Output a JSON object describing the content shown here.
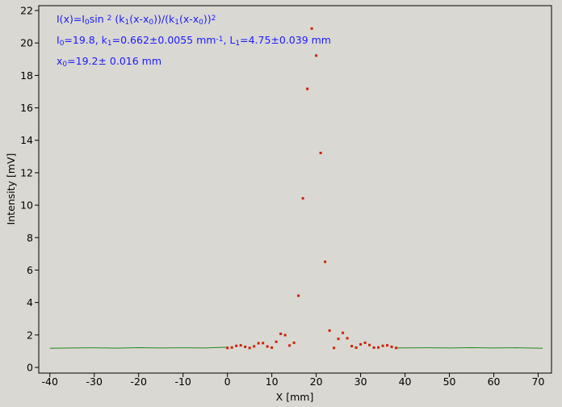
{
  "chart_data": {
    "type": "scatter",
    "xlabel": "X [mm]",
    "ylabel": "Intensity [mV]",
    "xlim": [
      -42.5,
      73
    ],
    "ylim": [
      -0.35,
      22.3
    ],
    "xticks": [
      -40,
      -30,
      -20,
      -10,
      0,
      10,
      20,
      30,
      40,
      50,
      60,
      70
    ],
    "yticks": [
      0,
      2,
      4,
      6,
      8,
      10,
      12,
      14,
      16,
      18,
      20,
      22
    ],
    "annotations": [
      [
        {
          "text": "I(x)=I"
        },
        {
          "text": "0",
          "shift": "sub"
        },
        {
          "text": "sin "
        },
        {
          "text": "2",
          "shift": "sup"
        },
        {
          "text": " (k"
        },
        {
          "text": "1",
          "shift": "sub"
        },
        {
          "text": "(x-x"
        },
        {
          "text": "0",
          "shift": "sub"
        },
        {
          "text": "))/(k"
        },
        {
          "text": "1",
          "shift": "sub"
        },
        {
          "text": "(x-x"
        },
        {
          "text": "0",
          "shift": "sub"
        },
        {
          "text": "))"
        },
        {
          "text": "2",
          "shift": "sup"
        }
      ],
      [
        {
          "text": "I"
        },
        {
          "text": "0",
          "shift": "sub"
        },
        {
          "text": "=19.8,  k"
        },
        {
          "text": "1",
          "shift": "sub"
        },
        {
          "text": "=0.662±0.0055 mm"
        },
        {
          "text": "-1",
          "shift": "sup"
        },
        {
          "text": ",   L"
        },
        {
          "text": "1",
          "shift": "sub"
        },
        {
          "text": "=4.75±0.039 mm"
        }
      ],
      [
        {
          "text": "x"
        },
        {
          "text": "0",
          "shift": "sub"
        },
        {
          "text": "=19.2±   0.016 mm"
        }
      ]
    ],
    "annotation_color": "#1a1aff",
    "series": [
      {
        "style": "line",
        "color": "#1f8a1f",
        "x": [
          -40,
          -35,
          -30,
          -25,
          -20,
          -15,
          -10,
          -5,
          0
        ],
        "values": [
          1.18,
          1.2,
          1.21,
          1.19,
          1.22,
          1.2,
          1.21,
          1.2,
          1.25
        ]
      },
      {
        "style": "line",
        "color": "#1f8a1f",
        "x": [
          38,
          45,
          50,
          55,
          60,
          65,
          71
        ],
        "values": [
          1.2,
          1.21,
          1.2,
          1.22,
          1.2,
          1.21,
          1.18
        ]
      },
      {
        "style": "dots",
        "color": "#cc2200",
        "x": [
          0,
          1,
          2,
          3,
          4,
          5,
          6,
          7,
          8,
          9,
          10,
          11,
          12,
          13,
          14,
          15,
          16,
          17,
          18,
          19,
          20,
          21,
          22,
          23,
          24,
          25,
          26,
          27,
          28,
          29,
          30,
          31,
          32,
          33,
          34,
          35,
          36,
          37,
          38
        ],
        "values": [
          1.2,
          1.23,
          1.33,
          1.36,
          1.27,
          1.2,
          1.3,
          1.49,
          1.5,
          1.29,
          1.22,
          1.58,
          2.07,
          1.99,
          1.35,
          1.52,
          4.42,
          10.42,
          17.17,
          20.89,
          19.22,
          13.22,
          6.51,
          2.27,
          1.2,
          1.76,
          2.13,
          1.8,
          1.31,
          1.22,
          1.42,
          1.52,
          1.38,
          1.22,
          1.23,
          1.33,
          1.36,
          1.27,
          1.2
        ]
      }
    ]
  }
}
